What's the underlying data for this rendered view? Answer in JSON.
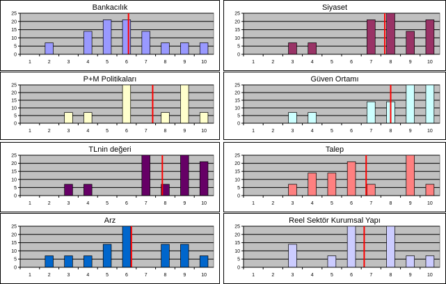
{
  "chart_data": [
    {
      "type": "bar",
      "title": "Bankacılık",
      "categories": [
        "1",
        "2",
        "3",
        "4",
        "5",
        "6",
        "7",
        "8",
        "9",
        "10"
      ],
      "values": [
        0,
        7,
        0,
        14,
        21,
        21,
        14,
        7,
        7,
        7
      ],
      "bar_color": "#9999ff",
      "reference_line": {
        "x": 6.1,
        "color": "#ff0000"
      },
      "ylim": [
        0,
        25
      ],
      "yticks": [
        0,
        5,
        10,
        15,
        20,
        25
      ],
      "grid": true,
      "plot_bg": "#c0c0c0"
    },
    {
      "type": "bar",
      "title": "Siyaset",
      "categories": [
        "1",
        "2",
        "3",
        "4",
        "5",
        "6",
        "7",
        "8",
        "9",
        "10"
      ],
      "values": [
        0,
        0,
        7,
        7,
        0,
        0,
        21,
        25,
        14,
        21
      ],
      "bar_color": "#993366",
      "reference_line": {
        "x": 7.7,
        "color": "#ff0000"
      },
      "ylim": [
        0,
        25
      ],
      "yticks": [
        0,
        5,
        10,
        15,
        20,
        25
      ],
      "grid": true,
      "plot_bg": "#c0c0c0"
    },
    {
      "type": "bar",
      "title": "P+M Politikaları",
      "categories": [
        "1",
        "2",
        "3",
        "4",
        "5",
        "6",
        "7",
        "8",
        "9",
        "10"
      ],
      "values": [
        0,
        0,
        7,
        7,
        0,
        25,
        0,
        7,
        25,
        7
      ],
      "bar_color": "#ffffcc",
      "reference_line": {
        "x": 7.35,
        "color": "#ff0000"
      },
      "ylim": [
        0,
        25
      ],
      "yticks": [
        0,
        5,
        10,
        15,
        20,
        25
      ],
      "grid": true,
      "plot_bg": "#c0c0c0"
    },
    {
      "type": "bar",
      "title": "Güven Ortamı",
      "categories": [
        "1",
        "2",
        "3",
        "4",
        "5",
        "6",
        "7",
        "8",
        "9",
        "10"
      ],
      "values": [
        0,
        0,
        7,
        7,
        0,
        0,
        14,
        14,
        25,
        25
      ],
      "bar_color": "#ccffff",
      "reference_line": {
        "x": 8.0,
        "color": "#ff0000"
      },
      "ylim": [
        0,
        25
      ],
      "yticks": [
        0,
        5,
        10,
        15,
        20,
        25
      ],
      "grid": true,
      "plot_bg": "#c0c0c0"
    },
    {
      "type": "bar",
      "title": "TLnin değeri",
      "categories": [
        "1",
        "2",
        "3",
        "4",
        "5",
        "6",
        "7",
        "8",
        "9",
        "10"
      ],
      "values": [
        0,
        0,
        7,
        7,
        0,
        0,
        25,
        7,
        25,
        21
      ],
      "bar_color": "#660066",
      "reference_line": {
        "x": 7.85,
        "color": "#ff0000"
      },
      "ylim": [
        0,
        25
      ],
      "yticks": [
        0,
        5,
        10,
        15,
        20,
        25
      ],
      "grid": true,
      "plot_bg": "#c0c0c0"
    },
    {
      "type": "bar",
      "title": "Talep",
      "categories": [
        "1",
        "2",
        "3",
        "4",
        "5",
        "6",
        "7",
        "8",
        "9",
        "10"
      ],
      "values": [
        0,
        0,
        7,
        14,
        14,
        21,
        7,
        0,
        25,
        7
      ],
      "bar_color": "#ff8080",
      "reference_line": {
        "x": 6.75,
        "color": "#ff0000"
      },
      "ylim": [
        0,
        25
      ],
      "yticks": [
        0,
        5,
        10,
        15,
        20,
        25
      ],
      "grid": true,
      "plot_bg": "#c0c0c0"
    },
    {
      "type": "bar",
      "title": "Arz",
      "categories": [
        "1",
        "2",
        "3",
        "4",
        "5",
        "6",
        "7",
        "8",
        "9",
        "10"
      ],
      "values": [
        0,
        7,
        7,
        7,
        14,
        25,
        0,
        14,
        14,
        7
      ],
      "bar_color": "#0066cc",
      "reference_line": {
        "x": 6.25,
        "color": "#ff0000"
      },
      "ylim": [
        0,
        25
      ],
      "yticks": [
        0,
        5,
        10,
        15,
        20,
        25
      ],
      "grid": true,
      "plot_bg": "#c0c0c0"
    },
    {
      "type": "bar",
      "title": "Reel Sektör Kurumsal Yapı",
      "categories": [
        "1",
        "2",
        "3",
        "4",
        "5",
        "6",
        "7",
        "8",
        "9",
        "10"
      ],
      "values": [
        0,
        0,
        14,
        0,
        7,
        25,
        0,
        25,
        7,
        7
      ],
      "bar_color": "#ccccff",
      "reference_line": {
        "x": 6.65,
        "color": "#ff0000"
      },
      "ylim": [
        0,
        25
      ],
      "yticks": [
        0,
        5,
        10,
        15,
        20,
        25
      ],
      "grid": true,
      "plot_bg": "#c0c0c0"
    }
  ]
}
